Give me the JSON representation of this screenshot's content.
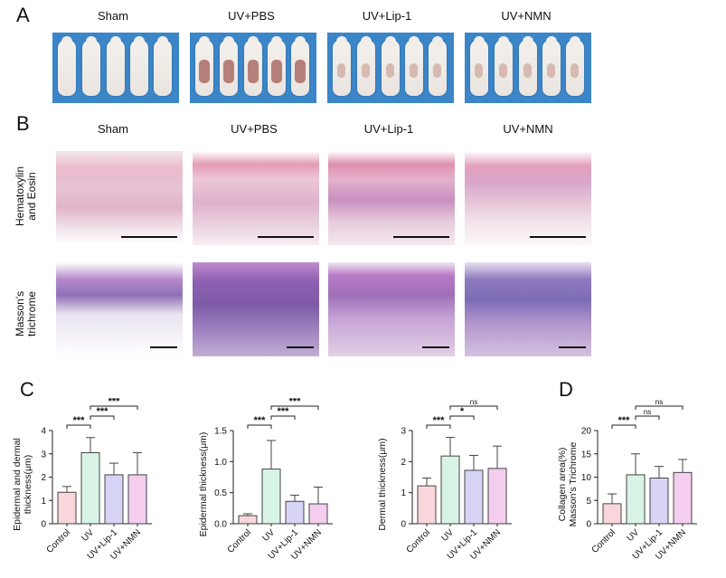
{
  "panel_a": {
    "letter": "A",
    "labels": [
      "Sham",
      "UV+PBS",
      "UV+Lip-1",
      "UV+NMN"
    ]
  },
  "panel_b": {
    "letter": "B",
    "labels": [
      "Sham",
      "UV+PBS",
      "UV+Lip-1",
      "UV+NMN"
    ],
    "row_he": [
      "Hematoxylin",
      "and Eosin"
    ],
    "row_mt": [
      "Masson's",
      "trichrome"
    ]
  },
  "panel_c": {
    "letter": "C"
  },
  "panel_d": {
    "letter": "D"
  },
  "colors": {
    "control": "#f8d6dc",
    "uv": "#d8f4e6",
    "lip1": "#d7d4f6",
    "nmn": "#f4cdef",
    "stroke": "#444444"
  },
  "chart_data": [
    {
      "type": "bar",
      "ylabel": [
        "Epidermal and dermal",
        "thickness(μm)"
      ],
      "categories": [
        "Control",
        "UV",
        "UV+Lip-1",
        "UV+NMN"
      ],
      "values": [
        1.35,
        3.05,
        2.1,
        2.1
      ],
      "errors": [
        0.25,
        0.65,
        0.5,
        0.95
      ],
      "ylim": [
        0,
        4
      ],
      "yticks": [
        "0",
        "1",
        "2",
        "3",
        "4"
      ],
      "sig": [
        {
          "from": 0,
          "to": 1,
          "label": "***"
        },
        {
          "from": 1,
          "to": 2,
          "label": "***"
        },
        {
          "from": 1,
          "to": 3,
          "label": "***"
        }
      ]
    },
    {
      "type": "bar",
      "ylabel": [
        "Epidermal thickness(μm)"
      ],
      "categories": [
        "Control",
        "UV",
        "UV+Lip-1",
        "UV+NMN"
      ],
      "values": [
        0.13,
        0.88,
        0.36,
        0.32
      ],
      "errors": [
        0.03,
        0.46,
        0.1,
        0.27
      ],
      "ylim": [
        0,
        1.5
      ],
      "yticks": [
        "0.0",
        "0.5",
        "1.0",
        "1.5"
      ],
      "sig": [
        {
          "from": 0,
          "to": 1,
          "label": "***"
        },
        {
          "from": 1,
          "to": 2,
          "label": "***"
        },
        {
          "from": 1,
          "to": 3,
          "label": "***"
        }
      ]
    },
    {
      "type": "bar",
      "ylabel": [
        "Dermal thickness(μm)"
      ],
      "categories": [
        "Control",
        "UV",
        "UV+Lip-1",
        "UV+NMN"
      ],
      "values": [
        1.22,
        2.18,
        1.72,
        1.78
      ],
      "errors": [
        0.25,
        0.6,
        0.48,
        0.72
      ],
      "ylim": [
        0,
        3
      ],
      "yticks": [
        "0",
        "1",
        "2",
        "3"
      ],
      "sig": [
        {
          "from": 0,
          "to": 1,
          "label": "***"
        },
        {
          "from": 1,
          "to": 2,
          "label": "*"
        },
        {
          "from": 1,
          "to": 3,
          "label": "ns"
        }
      ]
    },
    {
      "type": "bar",
      "ylabel": [
        "Collagen area(%)",
        "Masson's Trichrome"
      ],
      "categories": [
        "Control",
        "UV",
        "UV+Lip-1",
        "UV+NMN"
      ],
      "values": [
        4.3,
        10.5,
        9.8,
        11.0
      ],
      "errors": [
        2.1,
        4.5,
        2.5,
        2.8
      ],
      "ylim": [
        0,
        20
      ],
      "yticks": [
        "0",
        "5",
        "10",
        "15",
        "20"
      ],
      "sig": [
        {
          "from": 0,
          "to": 1,
          "label": "***"
        },
        {
          "from": 1,
          "to": 2,
          "label": "ns"
        },
        {
          "from": 1,
          "to": 3,
          "label": "ns"
        }
      ]
    }
  ]
}
